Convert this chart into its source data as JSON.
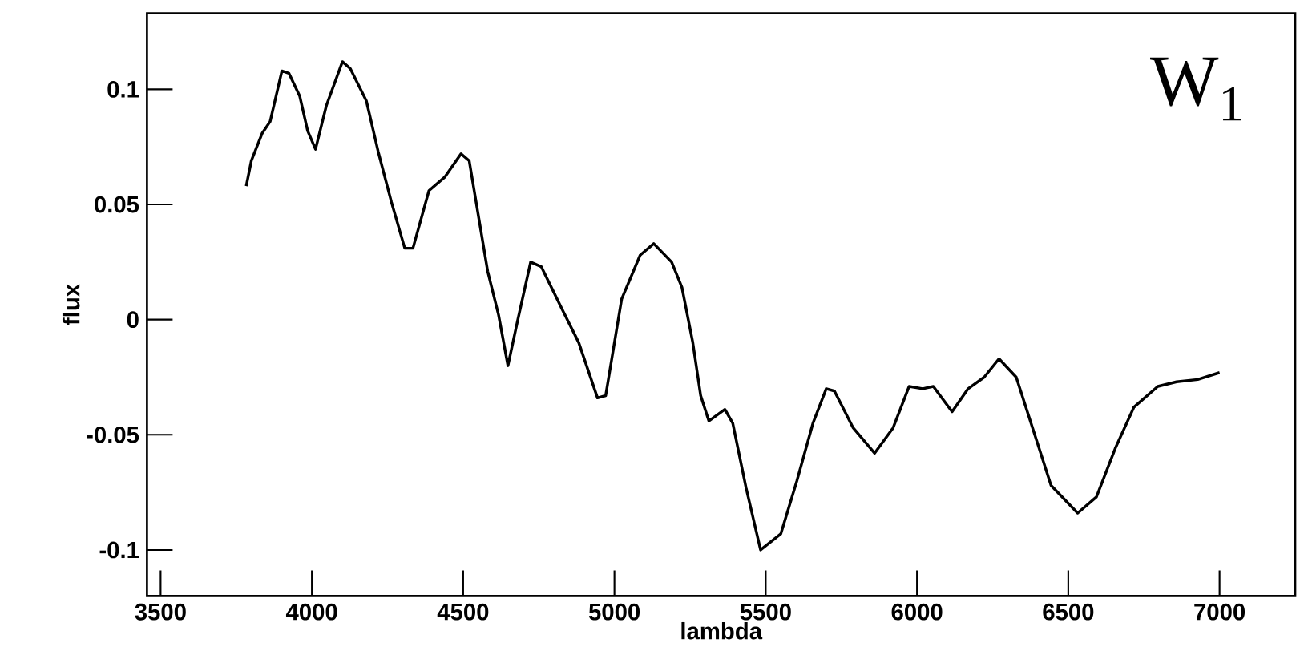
{
  "chart_data": {
    "type": "line",
    "xlabel": "lambda",
    "ylabel": "flux",
    "annotations": [
      "W$_{1}$"
    ],
    "xlim": [
      3455,
      7250
    ],
    "ylim": [
      -0.12,
      0.133
    ],
    "xticks": [
      3500,
      4000,
      4500,
      5000,
      5500,
      6000,
      6500,
      7000
    ],
    "yticks": [
      -0.1,
      -0.05,
      0,
      0.05,
      0.1
    ],
    "marker": "none",
    "line_style": "solid",
    "series": [
      {
        "color": "#000000",
        "x": [
          3783,
          3800,
          3836,
          3862,
          3901,
          3924,
          3960,
          3986,
          4012,
          4048,
          4101,
          4127,
          4180,
          4219,
          4263,
          4307,
          4334,
          4387,
          4440,
          4493,
          4520,
          4581,
          4617,
          4648,
          4679,
          4723,
          4758,
          4829,
          4882,
          4944,
          4971,
          5024,
          5085,
          5130,
          5189,
          5223,
          5259,
          5285,
          5312,
          5365,
          5391,
          5435,
          5483,
          5550,
          5603,
          5656,
          5700,
          5727,
          5789,
          5860,
          5921,
          5974,
          6019,
          6054,
          6116,
          6169,
          6222,
          6271,
          6328,
          6399,
          6443,
          6531,
          6593,
          6655,
          6717,
          6796,
          6858,
          6928,
          7000
        ],
        "values": [
          0.058,
          0.069,
          0.081,
          0.086,
          0.108,
          0.107,
          0.097,
          0.082,
          0.074,
          0.093,
          0.112,
          0.109,
          0.095,
          0.073,
          0.051,
          0.031,
          0.031,
          0.056,
          0.062,
          0.072,
          0.069,
          0.021,
          0.002,
          -0.02,
          -0.001,
          0.025,
          0.023,
          0.004,
          -0.01,
          -0.034,
          -0.033,
          0.009,
          0.028,
          0.033,
          0.025,
          0.014,
          -0.01,
          -0.033,
          -0.044,
          -0.039,
          -0.045,
          -0.073,
          -0.1,
          -0.093,
          -0.07,
          -0.045,
          -0.03,
          -0.031,
          -0.047,
          -0.058,
          -0.047,
          -0.029,
          -0.03,
          -0.029,
          -0.04,
          -0.03,
          -0.025,
          -0.017,
          -0.025,
          -0.054,
          -0.072,
          -0.084,
          -0.077,
          -0.056,
          -0.038,
          -0.029,
          -0.027,
          -0.026,
          -0.023
        ]
      }
    ]
  }
}
